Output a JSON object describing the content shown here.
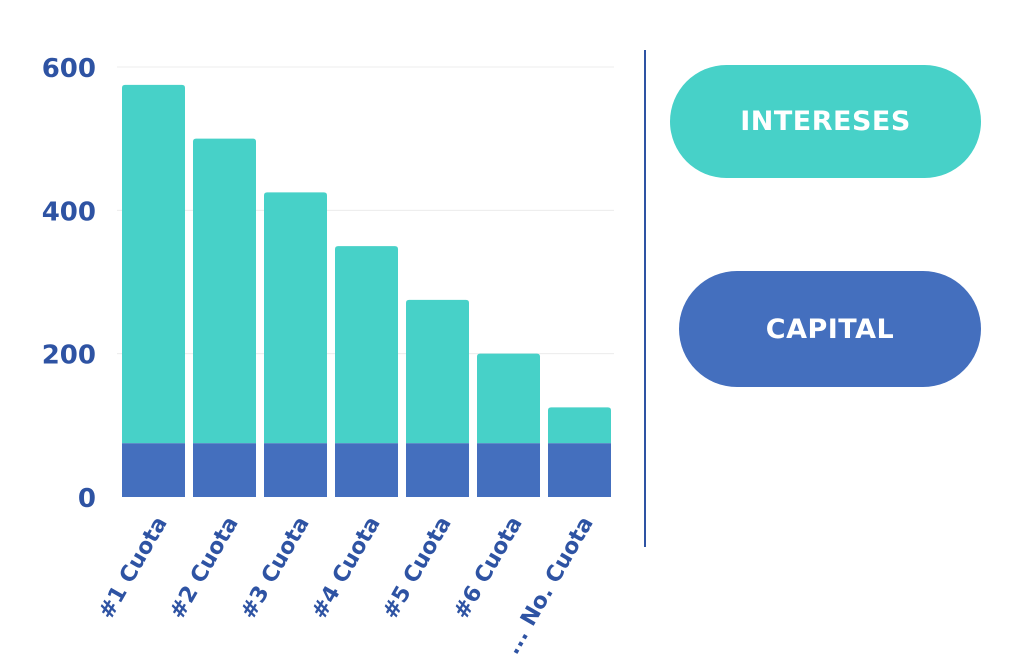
{
  "colors": {
    "intereses": "#47D1C8",
    "capital": "#446FBE",
    "text": "#2E53A3",
    "grid": "#ECECEC"
  },
  "legend": {
    "intereses_label": "INTERESES",
    "capital_label": "CAPITAL"
  },
  "chart_data": {
    "type": "bar",
    "stacked": true,
    "categories": [
      "#1 Cuota",
      "#2 Cuota",
      "#3 Cuota",
      "#4 Cuota",
      "#5 Cuota",
      "#6 Cuota",
      "... No. Cuota"
    ],
    "series": [
      {
        "name": "CAPITAL",
        "values": [
          75,
          75,
          75,
          75,
          75,
          75,
          75
        ]
      },
      {
        "name": "INTERESES",
        "values": [
          500,
          425,
          350,
          275,
          200,
          125,
          50
        ]
      }
    ],
    "totals": [
      575,
      500,
      425,
      350,
      275,
      200,
      125
    ],
    "ylim": [
      0,
      600
    ],
    "yticks": [
      0,
      200,
      400,
      600
    ],
    "grid": true,
    "legend_position": "right"
  }
}
